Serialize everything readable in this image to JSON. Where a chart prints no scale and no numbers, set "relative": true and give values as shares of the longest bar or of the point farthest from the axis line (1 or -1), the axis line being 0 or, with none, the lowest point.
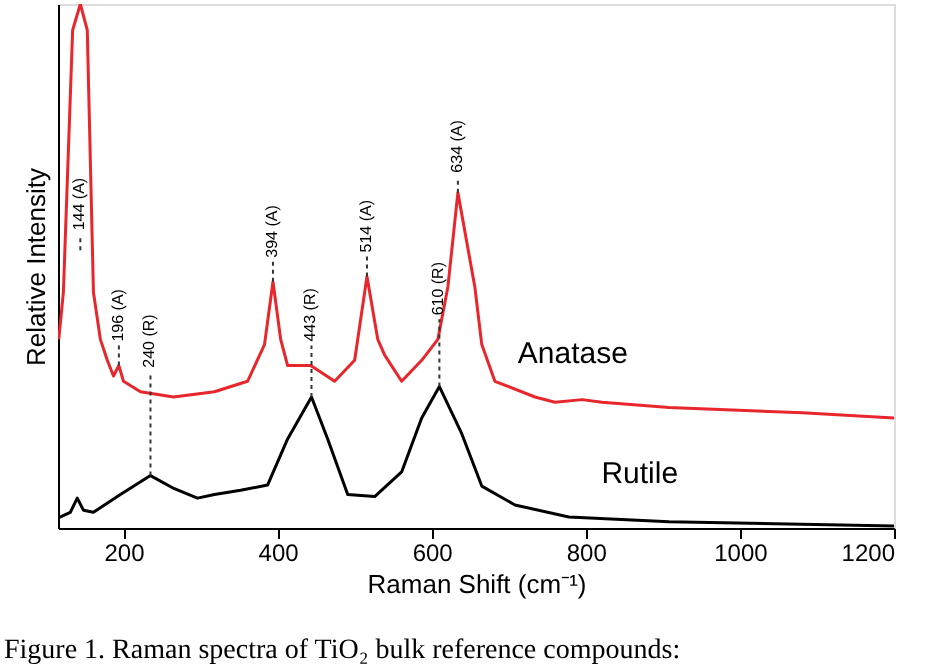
{
  "chart_data": {
    "type": "line",
    "xlabel": "Raman Shift (cm⁻¹)",
    "ylabel": "Relative Intensity",
    "relative": true,
    "xlim": [
      115,
      1200
    ],
    "xticks": [
      200,
      400,
      600,
      800,
      1000,
      1200
    ],
    "grid": false,
    "marker": "none",
    "line_style": "solid",
    "series": [
      {
        "name": "Anatase",
        "color": "#e8262b",
        "x": [
          116,
          122,
          134,
          144,
          153,
          161,
          170,
          179,
          187,
          194,
          200,
          222,
          265,
          318,
          361,
          383,
          394,
          404,
          413,
          443,
          474,
          500,
          516,
          530,
          539,
          561,
          587,
          608,
          621,
          634,
          656,
          665,
          682,
          734,
          760,
          795,
          821,
          908,
          1081,
          1200
        ],
        "values": [
          0.36,
          0.45,
          0.95,
          1.0,
          0.95,
          0.45,
          0.36,
          0.32,
          0.29,
          0.31,
          0.28,
          0.26,
          0.25,
          0.26,
          0.28,
          0.35,
          0.47,
          0.36,
          0.31,
          0.31,
          0.28,
          0.32,
          0.48,
          0.36,
          0.33,
          0.28,
          0.32,
          0.36,
          0.46,
          0.64,
          0.46,
          0.35,
          0.28,
          0.25,
          0.24,
          0.245,
          0.24,
          0.23,
          0.22,
          0.21
        ]
      },
      {
        "name": "Rutile",
        "color": "#000000",
        "x": [
          116,
          131,
          140,
          148,
          161,
          196,
          235,
          266,
          296,
          318,
          352,
          387,
          413,
          444,
          465,
          491,
          526,
          561,
          587,
          610,
          639,
          665,
          708,
          778,
          908,
          1200
        ],
        "values": [
          0.02,
          0.03,
          0.057,
          0.034,
          0.03,
          0.064,
          0.1,
          0.075,
          0.057,
          0.064,
          0.072,
          0.082,
          0.17,
          0.25,
          0.17,
          0.064,
          0.06,
          0.107,
          0.21,
          0.27,
          0.18,
          0.08,
          0.044,
          0.021,
          0.012,
          0.004
        ]
      }
    ],
    "annotations": [
      {
        "text": "144 (A)",
        "x": 144,
        "y": 0.53
      },
      {
        "text": "196 (A)",
        "x": 194,
        "y": 0.31
      },
      {
        "text": "394 (A)",
        "x": 394,
        "y": 0.47
      },
      {
        "text": "443 (R)",
        "x": 444,
        "y": 0.25
      },
      {
        "text": "514 (A)",
        "x": 516,
        "y": 0.48
      },
      {
        "text": "610 (R)",
        "x": 610,
        "y": 0.27
      },
      {
        "text": "634 (A)",
        "x": 634,
        "y": 0.64
      },
      {
        "text": "240 (R)",
        "x": 235,
        "y": 0.1
      },
      "Figure 1.  Raman spectra of TiO₂ bulk reference compounds:"
    ]
  }
}
